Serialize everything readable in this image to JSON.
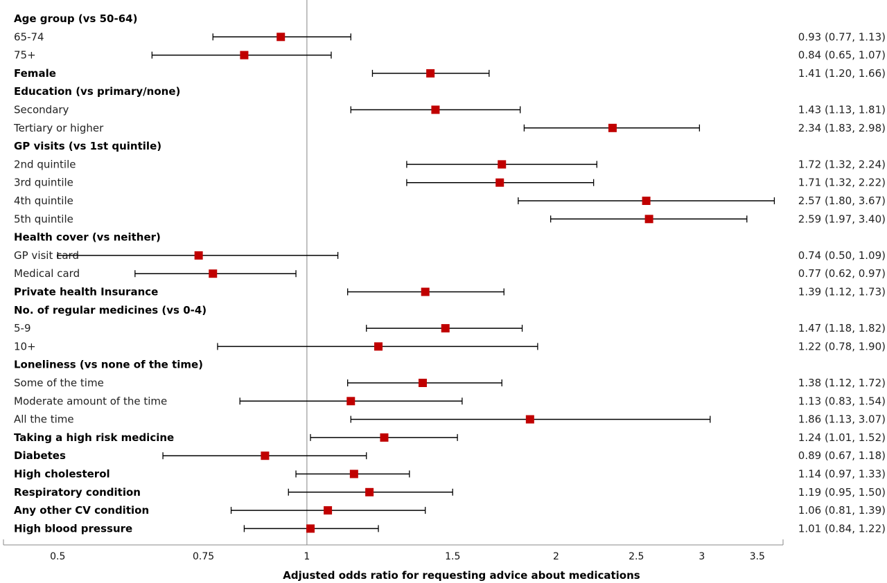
{
  "chart_data": {
    "type": "forest",
    "xlabel": "Adjusted odds ratio for requesting advice about medications",
    "x_scale": "log",
    "xlim": [
      0.43,
      3.76
    ],
    "reference_line": 1,
    "x_ticks": [
      {
        "value": 0.5,
        "label": "0.5"
      },
      {
        "value": 0.75,
        "label": "0.75"
      },
      {
        "value": 1,
        "label": "1"
      },
      {
        "value": 1.5,
        "label": "1.5"
      },
      {
        "value": 2,
        "label": "2"
      },
      {
        "value": 2.5,
        "label": "2.5"
      },
      {
        "value": 3,
        "label": "3"
      },
      {
        "value": 3.5,
        "label": "3.5"
      }
    ],
    "marker_color": "#c00000",
    "rows": [
      {
        "label": "Age group (vs 50-64)",
        "header": true
      },
      {
        "label": "65-74",
        "or": 0.93,
        "lo": 0.77,
        "hi": 1.13,
        "text": "0.93 (0.77, 1.13)"
      },
      {
        "label": "75+",
        "or": 0.84,
        "lo": 0.65,
        "hi": 1.07,
        "text": "0.84 (0.65, 1.07)"
      },
      {
        "label": "Female",
        "bold": true,
        "or": 1.41,
        "lo": 1.2,
        "hi": 1.66,
        "text": "1.41 (1.20, 1.66)"
      },
      {
        "label": "Education (vs primary/none)",
        "header": true
      },
      {
        "label": "Secondary",
        "or": 1.43,
        "lo": 1.13,
        "hi": 1.81,
        "text": "1.43 (1.13, 1.81)"
      },
      {
        "label": "Tertiary or higher",
        "or": 2.34,
        "lo": 1.83,
        "hi": 2.98,
        "text": "2.34 (1.83, 2.98)"
      },
      {
        "label": "GP visits (vs 1st quintile)",
        "header": true
      },
      {
        "label": "2nd quintile",
        "or": 1.72,
        "lo": 1.32,
        "hi": 2.24,
        "text": "1.72 (1.32, 2.24)"
      },
      {
        "label": "3rd quintile",
        "or": 1.71,
        "lo": 1.32,
        "hi": 2.22,
        "text": "1.71 (1.32, 2.22)"
      },
      {
        "label": "4th quintile",
        "or": 2.57,
        "lo": 1.8,
        "hi": 3.67,
        "text": "2.57 (1.80, 3.67)"
      },
      {
        "label": "5th quintile",
        "or": 2.59,
        "lo": 1.97,
        "hi": 3.4,
        "text": "2.59 (1.97, 3.40)"
      },
      {
        "label": "Health cover (vs neither)",
        "header": true
      },
      {
        "label": "GP visit card",
        "or": 0.74,
        "lo": 0.5,
        "hi": 1.09,
        "text": "0.74 (0.50, 1.09)"
      },
      {
        "label": "Medical card",
        "or": 0.77,
        "lo": 0.62,
        "hi": 0.97,
        "text": "0.77 (0.62, 0.97)"
      },
      {
        "label": "Private health Insurance",
        "bold": true,
        "or": 1.39,
        "lo": 1.12,
        "hi": 1.73,
        "text": "1.39 (1.12, 1.73)"
      },
      {
        "label": "No. of regular medicines (vs 0-4)",
        "header": true
      },
      {
        "label": "5-9",
        "or": 1.47,
        "lo": 1.18,
        "hi": 1.82,
        "text": "1.47 (1.18, 1.82)"
      },
      {
        "label": "10+",
        "or": 1.22,
        "lo": 0.78,
        "hi": 1.9,
        "text": "1.22 (0.78, 1.90)"
      },
      {
        "label": "Loneliness (vs none of the time)",
        "header": true
      },
      {
        "label": "Some of the time",
        "or": 1.38,
        "lo": 1.12,
        "hi": 1.72,
        "text": "1.38 (1.12, 1.72)"
      },
      {
        "label": "Moderate amount of the time",
        "or": 1.13,
        "lo": 0.83,
        "hi": 1.54,
        "text": "1.13 (0.83, 1.54)"
      },
      {
        "label": "All the time",
        "or": 1.86,
        "lo": 1.13,
        "hi": 3.07,
        "text": "1.86 (1.13, 3.07)"
      },
      {
        "label": "Taking a high risk medicine",
        "bold": true,
        "or": 1.24,
        "lo": 1.01,
        "hi": 1.52,
        "text": "1.24 (1.01, 1.52)"
      },
      {
        "label": "Diabetes",
        "bold": true,
        "or": 0.89,
        "lo": 0.67,
        "hi": 1.18,
        "text": "0.89 (0.67, 1.18)"
      },
      {
        "label": "High cholesterol",
        "bold": true,
        "or": 1.14,
        "lo": 0.97,
        "hi": 1.33,
        "text": "1.14 (0.97, 1.33)"
      },
      {
        "label": "Respiratory condition",
        "bold": true,
        "or": 1.19,
        "lo": 0.95,
        "hi": 1.5,
        "text": "1.19 (0.95, 1.50)"
      },
      {
        "label": "Any other CV condition",
        "bold": true,
        "or": 1.06,
        "lo": 0.81,
        "hi": 1.39,
        "text": "1.06 (0.81, 1.39)"
      },
      {
        "label": "High blood pressure",
        "bold": true,
        "or": 1.01,
        "lo": 0.84,
        "hi": 1.22,
        "text": "1.01 (0.84, 1.22)"
      }
    ]
  }
}
